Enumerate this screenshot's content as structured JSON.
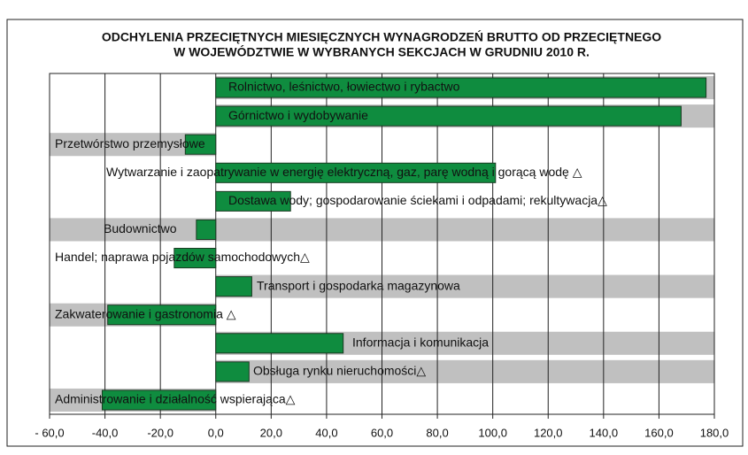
{
  "chart_data": {
    "type": "bar",
    "orientation": "horizontal",
    "title": "ODCHYLENIA PRZECIĘTNYCH MIESIĘCZNYCH WYNAGRODZEŃ BRUTTO OD PRZECIĘTNEGO",
    "subtitle": "W WOJEWÓDZTWIE W WYBRANYCH SEKCJACH W GRUDNIU 2010 R.",
    "categories": [
      "Rolnictwo, leśnictwo, łowiectwo i rybactwo",
      "Górnictwo i wydobywanie",
      "Przetwórstwo przemysłowe",
      "Wytwarzanie i zaopatrywanie w energię elektryczną, gaz, parę wodną i gorącą wodę △",
      "Dostawa wody; gospodarowanie ściekami i odpadami; rekultywacja△",
      "Budownictwo",
      "Handel; naprawa pojazdów samochodowych△",
      "Transport i gospodarka magazynowa",
      "Zakwaterowanie i gastronomia △",
      "Informacja i komunikacja",
      "Obsługa rynku nieruchomości△",
      "Administrowanie i działalność wspierająca△"
    ],
    "values": [
      177,
      168,
      -11,
      101,
      27,
      -7,
      -15,
      13,
      -39,
      46,
      12,
      -41
    ],
    "color": "#0f8c3f",
    "xlim": [
      -60,
      180
    ],
    "xticks": [
      {
        "value": -60,
        "label": "- 60,0"
      },
      {
        "value": -40,
        "label": "-40,0"
      },
      {
        "value": -20,
        "label": "-20,0"
      },
      {
        "value": 0,
        "label": "0,0"
      },
      {
        "value": 20,
        "label": "20,0"
      },
      {
        "value": 40,
        "label": "40,0"
      },
      {
        "value": 60,
        "label": "60,0"
      },
      {
        "value": 80,
        "label": "80,0"
      },
      {
        "value": 100,
        "label": "100,0"
      },
      {
        "value": 120,
        "label": "120,0"
      },
      {
        "value": 140,
        "label": "140,0"
      },
      {
        "value": 160,
        "label": "160,0"
      },
      {
        "value": 180,
        "label": "180,0"
      }
    ],
    "grid": true
  }
}
